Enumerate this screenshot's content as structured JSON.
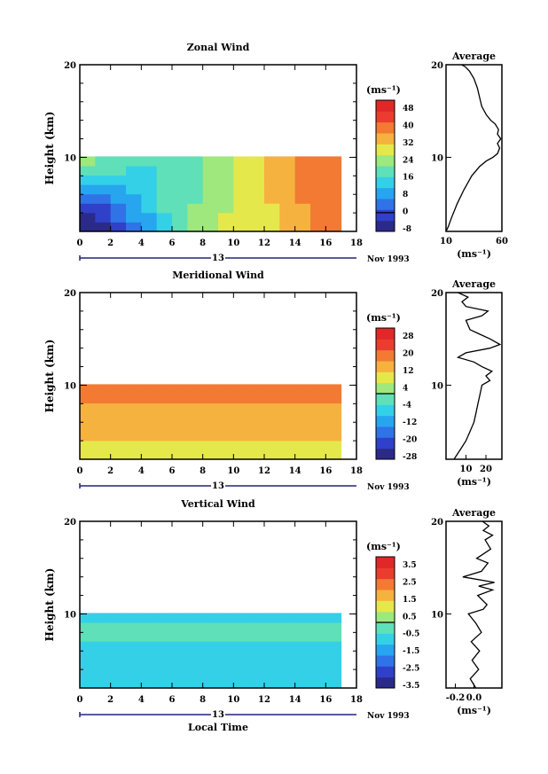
{
  "chart_data": [
    {
      "type": "heatmap",
      "title": "Zonal Wind",
      "ylabel": "Height (km)",
      "xlim": [
        0,
        18
      ],
      "ylim": [
        2,
        20
      ],
      "xticks": [
        "0",
        "2",
        "4",
        "6",
        "8",
        "10",
        "12",
        "14",
        "16",
        "18"
      ],
      "yticks": [
        "20",
        "10"
      ],
      "date_label": "13",
      "date_suffix": "Nov 1993",
      "colorbar": {
        "unit": "(ms⁻¹)",
        "ticks": [
          "48",
          "40",
          "32",
          "24",
          "16",
          "8",
          "0",
          "-8"
        ],
        "range": [
          -8,
          48
        ]
      },
      "profile": {
        "title": "Average",
        "xticks": [
          "10",
          "60"
        ],
        "xlim": [
          10,
          60
        ],
        "yticks": [
          "20",
          "10"
        ],
        "xlabel": "(ms⁻¹)",
        "points": [
          [
            10,
            2
          ],
          [
            12,
            2.5
          ],
          [
            15,
            3.5
          ],
          [
            20,
            5
          ],
          [
            26,
            6.5
          ],
          [
            33,
            8
          ],
          [
            40,
            9
          ],
          [
            46,
            9.6
          ],
          [
            52,
            10
          ],
          [
            56,
            10.4
          ],
          [
            58,
            11
          ],
          [
            56,
            11.5
          ],
          [
            59,
            12
          ],
          [
            56,
            12.5
          ],
          [
            57,
            13
          ],
          [
            54,
            13.6
          ],
          [
            50,
            14
          ],
          [
            46,
            14.6
          ],
          [
            42,
            15.5
          ],
          [
            40,
            16.5
          ],
          [
            38,
            17.5
          ],
          [
            35,
            18.5
          ],
          [
            31,
            19.3
          ],
          [
            27,
            19.8
          ],
          [
            24,
            20
          ]
        ]
      },
      "grid": [
        [
          0,
          0,
          1,
          2,
          3,
          4,
          5,
          6,
          6,
          7,
          7,
          7,
          7,
          8,
          8,
          9,
          9
        ],
        [
          0,
          1,
          2,
          3,
          3,
          4,
          5,
          6,
          6,
          7,
          7,
          7,
          7,
          8,
          8,
          9,
          9
        ],
        [
          1,
          1,
          2,
          3,
          4,
          5,
          5,
          6,
          6,
          6,
          7,
          7,
          7,
          8,
          8,
          9,
          9
        ],
        [
          2,
          2,
          3,
          3,
          4,
          5,
          5,
          5,
          6,
          6,
          7,
          7,
          8,
          8,
          9,
          9,
          9
        ],
        [
          3,
          3,
          3,
          4,
          4,
          5,
          5,
          5,
          6,
          6,
          7,
          7,
          8,
          8,
          9,
          9,
          9
        ],
        [
          4,
          4,
          4,
          4,
          4,
          5,
          5,
          5,
          6,
          6,
          7,
          7,
          8,
          8,
          9,
          9,
          9
        ],
        [
          5,
          5,
          5,
          4,
          4,
          5,
          5,
          5,
          6,
          6,
          7,
          7,
          8,
          8,
          9,
          9,
          9
        ],
        [
          6,
          5,
          5,
          5,
          5,
          5,
          5,
          5,
          6,
          6,
          7,
          7,
          8,
          8,
          9,
          9,
          9
        ]
      ]
    },
    {
      "type": "heatmap",
      "title": "Meridional Wind",
      "ylabel": "Height (km)",
      "xlim": [
        0,
        18
      ],
      "ylim": [
        2,
        20
      ],
      "xticks": [
        "0",
        "2",
        "4",
        "6",
        "8",
        "10",
        "12",
        "14",
        "16",
        "18"
      ],
      "yticks": [
        "20",
        "10"
      ],
      "date_label": "13",
      "date_suffix": "Nov 1993",
      "colorbar": {
        "unit": "(ms⁻¹)",
        "ticks": [
          "28",
          "20",
          "12",
          "4",
          "-4",
          "-12",
          "-20",
          "-28"
        ],
        "range": [
          -28,
          28
        ]
      },
      "profile": {
        "title": "Average",
        "xticks": [
          "10",
          "20"
        ],
        "xlim": [
          0,
          28
        ],
        "yticks": [
          "20",
          "10"
        ],
        "xlabel": "(ms⁻¹)",
        "points": [
          [
            4,
            2
          ],
          [
            7,
            3
          ],
          [
            10,
            4
          ],
          [
            12,
            5
          ],
          [
            14,
            6
          ],
          [
            15,
            7
          ],
          [
            16,
            8
          ],
          [
            17,
            9
          ],
          [
            18,
            10
          ],
          [
            22,
            10.5
          ],
          [
            20,
            11
          ],
          [
            23,
            11.5
          ],
          [
            18,
            12
          ],
          [
            14,
            12.5
          ],
          [
            6,
            13
          ],
          [
            10,
            13.5
          ],
          [
            22,
            14
          ],
          [
            27,
            14.4
          ],
          [
            22,
            15
          ],
          [
            16,
            15.6
          ],
          [
            12,
            16
          ],
          [
            10,
            17
          ],
          [
            18,
            17.5
          ],
          [
            21,
            18
          ],
          [
            10,
            18.5
          ],
          [
            8,
            19
          ],
          [
            11,
            19.5
          ],
          [
            6,
            20
          ]
        ]
      },
      "grid": [
        [
          7,
          7,
          7,
          7,
          7,
          7,
          7,
          7,
          7,
          7,
          7,
          7,
          7,
          7,
          7,
          7,
          7
        ],
        [
          7,
          7,
          7,
          7,
          7,
          7,
          7,
          7,
          7,
          7,
          7,
          7,
          7,
          7,
          7,
          7,
          7
        ],
        [
          8,
          8,
          8,
          8,
          8,
          8,
          8,
          8,
          8,
          8,
          8,
          8,
          8,
          8,
          8,
          8,
          8
        ],
        [
          8,
          8,
          8,
          8,
          8,
          8,
          8,
          8,
          8,
          8,
          8,
          8,
          8,
          8,
          8,
          8,
          8
        ],
        [
          8,
          8,
          8,
          8,
          8,
          8,
          8,
          8,
          8,
          8,
          8,
          8,
          8,
          8,
          8,
          8,
          8
        ],
        [
          8,
          8,
          8,
          8,
          8,
          8,
          8,
          8,
          8,
          8,
          8,
          8,
          8,
          8,
          8,
          8,
          8
        ],
        [
          9,
          9,
          9,
          9,
          9,
          9,
          9,
          9,
          9,
          9,
          9,
          9,
          9,
          9,
          9,
          9,
          9
        ],
        [
          9,
          9,
          9,
          9,
          9,
          9,
          9,
          9,
          9,
          9,
          9,
          9,
          9,
          9,
          9,
          9,
          9
        ]
      ]
    },
    {
      "type": "heatmap",
      "title": "Vertical Wind",
      "ylabel": "Height (km)",
      "xlabel": "Local Time",
      "xlim": [
        0,
        18
      ],
      "ylim": [
        2,
        20
      ],
      "xticks": [
        "0",
        "2",
        "4",
        "6",
        "8",
        "10",
        "12",
        "14",
        "16",
        "18"
      ],
      "yticks": [
        "20",
        "10"
      ],
      "date_label": "13",
      "date_suffix": "Nov 1993",
      "colorbar": {
        "unit": "(ms⁻¹)",
        "ticks": [
          "3.5",
          "2.5",
          "1.5",
          "0.5",
          "-0.5",
          "-1.5",
          "-2.5",
          "-3.5"
        ],
        "range": [
          -3.5,
          3.5
        ]
      },
      "profile": {
        "title": "Average",
        "xticks": [
          "-0.2",
          "0.0"
        ],
        "xlim": [
          -0.3,
          0.3
        ],
        "yticks": [
          "20",
          "10"
        ],
        "xlabel": "(ms⁻¹)",
        "points": [
          [
            0.02,
            2
          ],
          [
            -0.04,
            3
          ],
          [
            0.05,
            4
          ],
          [
            -0.02,
            5
          ],
          [
            0.06,
            6
          ],
          [
            -0.03,
            7
          ],
          [
            0.08,
            8
          ],
          [
            0.02,
            9
          ],
          [
            -0.06,
            10
          ],
          [
            0.1,
            10.5
          ],
          [
            0.14,
            11
          ],
          [
            0.04,
            12
          ],
          [
            0.2,
            12.6
          ],
          [
            0.05,
            13
          ],
          [
            0.22,
            13.4
          ],
          [
            -0.12,
            14
          ],
          [
            0.08,
            14.6
          ],
          [
            0.15,
            15.5
          ],
          [
            0.03,
            16
          ],
          [
            0.18,
            17
          ],
          [
            0.12,
            18
          ],
          [
            0.2,
            18.5
          ],
          [
            0.1,
            19
          ],
          [
            0.16,
            19.5
          ],
          [
            0.09,
            20
          ]
        ]
      },
      "grid": [
        [
          4,
          4,
          4,
          4,
          4,
          4,
          4,
          4,
          4,
          4,
          4,
          4,
          4,
          4,
          4,
          4,
          4
        ],
        [
          4,
          4,
          4,
          4,
          4,
          4,
          4,
          4,
          4,
          4,
          4,
          4,
          4,
          4,
          4,
          4,
          4
        ],
        [
          4,
          4,
          4,
          4,
          4,
          4,
          4,
          4,
          4,
          4,
          4,
          4,
          4,
          4,
          4,
          4,
          4
        ],
        [
          4,
          4,
          4,
          4,
          4,
          4,
          4,
          4,
          4,
          4,
          4,
          4,
          4,
          4,
          4,
          4,
          4
        ],
        [
          4,
          4,
          4,
          4,
          4,
          4,
          4,
          4,
          4,
          4,
          4,
          4,
          4,
          4,
          4,
          4,
          4
        ],
        [
          5,
          5,
          5,
          5,
          5,
          5,
          5,
          5,
          5,
          5,
          5,
          5,
          5,
          5,
          5,
          5,
          5
        ],
        [
          5,
          5,
          5,
          5,
          5,
          5,
          5,
          5,
          5,
          5,
          5,
          5,
          5,
          5,
          5,
          5,
          5
        ],
        [
          4,
          4,
          4,
          4,
          4,
          4,
          4,
          4,
          4,
          4,
          4,
          4,
          4,
          4,
          4,
          4,
          4
        ]
      ]
    }
  ],
  "palette": [
    "#2b2a88",
    "#3040c8",
    "#2f73e6",
    "#27a5ef",
    "#33d0e8",
    "#5fe0b8",
    "#9ee87e",
    "#e5e84a",
    "#f6b23f",
    "#f27a33",
    "#ea3d2f",
    "#e0272a"
  ]
}
